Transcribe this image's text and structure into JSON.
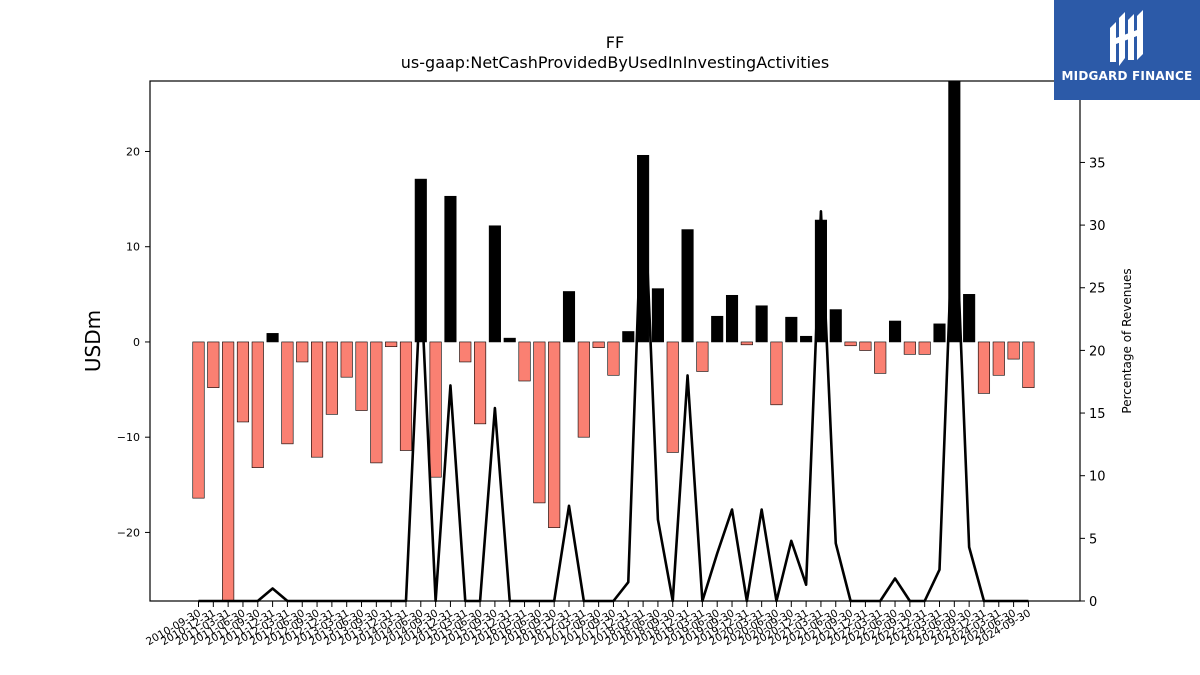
{
  "chart_data": {
    "type": "bar",
    "title": "FF",
    "subtitle": "us-gaap:NetCashProvidedByUsedInInvestingActivities",
    "ylabel": "USDm",
    "ylabel_right": "Percentage of Revenues",
    "ylim": [
      -27.2,
      27.4
    ],
    "ylim_right": [
      0,
      41.5
    ],
    "yticks": [
      -20,
      -10,
      0,
      10,
      20
    ],
    "yticks_right": [
      0,
      5,
      10,
      15,
      20,
      25,
      30,
      35
    ],
    "colors": {
      "negative": "#fa8072",
      "positive": "#000000",
      "line": "#000000"
    },
    "grid": false,
    "categories": [
      "2010-09-30",
      "2010-12-31",
      "2011-03-31",
      "2011-06-30",
      "2011-09-30",
      "2011-12-31",
      "2012-03-31",
      "2012-06-30",
      "2012-09-30",
      "2012-12-31",
      "2013-03-31",
      "2013-06-30",
      "2013-09-30",
      "2013-12-31",
      "2014-03-31",
      "2014-06-30",
      "2014-09-30",
      "2014-12-31",
      "2015-03-31",
      "2015-06-30",
      "2015-09-30",
      "2015-12-31",
      "2016-03-31",
      "2016-06-30",
      "2016-09-30",
      "2016-12-31",
      "2017-03-31",
      "2017-06-30",
      "2017-09-30",
      "2017-12-31",
      "2018-03-31",
      "2018-06-30",
      "2018-09-30",
      "2018-12-31",
      "2019-03-31",
      "2019-06-30",
      "2019-09-30",
      "2019-12-31",
      "2020-03-31",
      "2020-06-30",
      "2020-09-30",
      "2020-12-31",
      "2021-03-31",
      "2021-06-30",
      "2021-09-30",
      "2021-12-31",
      "2022-03-31",
      "2022-06-30",
      "2022-09-30",
      "2022-12-31",
      "2023-03-31",
      "2023-06-30",
      "2023-09-30",
      "2023-12-31",
      "2024-03-31",
      "2024-06-30",
      "2024-09-30"
    ],
    "values": [
      -16.4,
      -4.8,
      -28.0,
      -8.4,
      -13.2,
      0.9,
      -10.7,
      -2.1,
      -12.1,
      -7.6,
      -3.7,
      -7.2,
      -12.7,
      -0.5,
      -11.4,
      17.1,
      -14.2,
      15.3,
      -2.1,
      -8.6,
      12.2,
      0.4,
      -4.1,
      -16.9,
      -19.5,
      5.3,
      -10.0,
      -0.6,
      -3.5,
      1.1,
      19.6,
      5.6,
      -11.6,
      11.8,
      -3.1,
      2.7,
      4.9,
      -0.3,
      3.8,
      -6.6,
      2.6,
      0.6,
      12.8,
      3.4,
      -0.4,
      -0.9,
      -3.3,
      2.2,
      -1.3,
      -1.3,
      1.9,
      28.0,
      5.0,
      -5.4,
      -3.5,
      -1.8,
      -4.8
    ],
    "series": [
      {
        "values": [
          0,
          0,
          0,
          0,
          0,
          1.0,
          0,
          0,
          0,
          0,
          0,
          0,
          0,
          0,
          0,
          25.5,
          0,
          17.2,
          0,
          0,
          15.4,
          0,
          0,
          0,
          0,
          7.6,
          0,
          0,
          0,
          1.5,
          35.1,
          6.5,
          0,
          18.0,
          0,
          3.8,
          7.3,
          0,
          7.3,
          0,
          4.8,
          1.3,
          31.1,
          4.6,
          0,
          0,
          0,
          1.8,
          0,
          0,
          2.5,
          33.7,
          4.3,
          0,
          0,
          0,
          0
        ]
      }
    ]
  },
  "logo": {
    "brand": "MIDGARD FINANCE"
  }
}
